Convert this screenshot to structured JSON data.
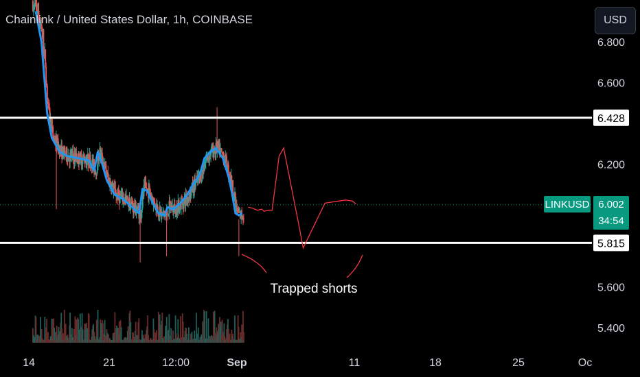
{
  "title": "Chainlink / United States Dollar, 1h, COINBASE",
  "currency_button": "USD",
  "colors": {
    "background": "#000000",
    "candle_up": "#26a69a",
    "candle_down": "#ef5350",
    "moving_average": "#2196f3",
    "level_lines": "#ffffff",
    "projection": "#f23645",
    "price_badge": "#089981",
    "annotation": "#f23645"
  },
  "chart_data": {
    "type": "candlestick",
    "symbol_badge": "LINKUSD",
    "last_price": "6.002",
    "countdown": "34:54",
    "y_axis": {
      "ticks": [
        {
          "value": 6.8,
          "label": "6.800"
        },
        {
          "value": 6.6,
          "label": "6.600"
        },
        {
          "value": 6.2,
          "label": "6.200"
        },
        {
          "value": 5.6,
          "label": "5.600"
        },
        {
          "value": 5.4,
          "label": "5.400"
        }
      ],
      "range": [
        5.35,
        6.85
      ]
    },
    "x_axis": {
      "ticks": [
        "14",
        "21",
        "12:00",
        "Sep",
        "11",
        "18",
        "25",
        "Oc"
      ]
    },
    "horizontal_levels": [
      {
        "value": 6.428,
        "label": "6.428"
      },
      {
        "value": 5.815,
        "label": "5.815"
      }
    ],
    "last_price_value": 6.002,
    "annotation_text": "Trapped shorts",
    "ma_points": [
      [
        14.6,
        6.95
      ],
      [
        15.1,
        6.8
      ],
      [
        15.6,
        6.45
      ],
      [
        16.0,
        6.33
      ],
      [
        16.7,
        6.26
      ],
      [
        17.4,
        6.24
      ],
      [
        18.3,
        6.23
      ],
      [
        19.2,
        6.22
      ],
      [
        19.7,
        6.17
      ],
      [
        20.0,
        6.26
      ],
      [
        20.3,
        6.22
      ],
      [
        20.8,
        6.12
      ],
      [
        21.5,
        6.05
      ],
      [
        22.2,
        6.03
      ],
      [
        23.0,
        5.99
      ],
      [
        23.6,
        5.96
      ],
      [
        23.9,
        6.08
      ],
      [
        24.3,
        6.07
      ],
      [
        24.8,
        6.01
      ],
      [
        25.3,
        5.96
      ],
      [
        25.8,
        5.95
      ],
      [
        26.1,
        5.99
      ],
      [
        26.6,
        5.98
      ],
      [
        27.2,
        6.01
      ],
      [
        27.8,
        6.05
      ],
      [
        28.3,
        6.1
      ],
      [
        28.9,
        6.15
      ],
      [
        29.3,
        6.23
      ],
      [
        29.8,
        6.26
      ],
      [
        30.3,
        6.28
      ],
      [
        30.9,
        6.23
      ],
      [
        31.4,
        6.14
      ],
      [
        31.7,
        6.06
      ],
      [
        32.0,
        5.96
      ],
      [
        32.3,
        5.95
      ],
      [
        32.6,
        5.96
      ]
    ],
    "projection_points": [
      [
        33.1,
        5.99
      ],
      [
        33.5,
        5.985
      ],
      [
        33.9,
        5.975
      ],
      [
        34.3,
        5.98
      ],
      [
        34.5,
        5.97
      ],
      [
        34.9,
        5.975
      ],
      [
        35.2,
        5.975
      ],
      [
        35.8,
        6.24
      ],
      [
        36.2,
        6.28
      ],
      [
        37.6,
        5.88
      ],
      [
        37.9,
        5.79
      ],
      [
        39.8,
        6.01
      ],
      [
        40.4,
        6.015
      ],
      [
        41.0,
        6.02
      ],
      [
        41.6,
        6.025
      ],
      [
        42.2,
        6.02
      ],
      [
        42.5,
        6.005
      ]
    ]
  }
}
